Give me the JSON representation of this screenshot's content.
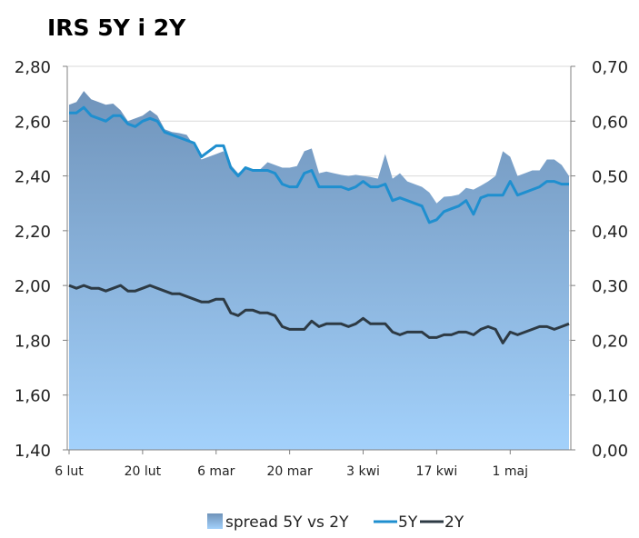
{
  "chart_data": {
    "type": "line+area",
    "title": "IRS 5Y i 2Y",
    "x_labels": [
      "6 lut",
      "20 lut",
      "6 mar",
      "20 mar",
      "3 kwi",
      "17 kwi",
      "1 maj"
    ],
    "left_axis": {
      "ylim": [
        1.4,
        2.8
      ],
      "ticks": [
        "1,40",
        "1,60",
        "1,80",
        "2,00",
        "2,20",
        "2,40",
        "2,60",
        "2,80"
      ]
    },
    "right_axis": {
      "ylim": [
        0.0,
        0.7
      ],
      "ticks": [
        "0,00",
        "0,10",
        "0,20",
        "0,30",
        "0,40",
        "0,50",
        "0,60",
        "0,70"
      ]
    },
    "grid": true,
    "legend_position": "bottom",
    "colors": {
      "spread": "#7a9cc4",
      "spread_light": "#9fcbf5",
      "s5y": "#1f8fcf",
      "s2y": "#2d3a44"
    },
    "series": [
      {
        "name": "spread 5Y vs 2Y",
        "axis": "right",
        "type": "area",
        "values": [
          0.63,
          0.635,
          0.655,
          0.64,
          0.635,
          0.63,
          0.632,
          0.62,
          0.6,
          0.605,
          0.61,
          0.62,
          0.61,
          0.585,
          0.58,
          0.578,
          0.575,
          0.555,
          0.53,
          0.535,
          0.54,
          0.545,
          0.52,
          0.505,
          0.515,
          0.51,
          0.512,
          0.525,
          0.52,
          0.515,
          0.515,
          0.518,
          0.545,
          0.55,
          0.505,
          0.508,
          0.505,
          0.502,
          0.5,
          0.502,
          0.5,
          0.498,
          0.495,
          0.54,
          0.495,
          0.505,
          0.49,
          0.485,
          0.48,
          0.47,
          0.45,
          0.462,
          0.463,
          0.466,
          0.478,
          0.475,
          0.482,
          0.49,
          0.5,
          0.545,
          0.535,
          0.5,
          0.505,
          0.51,
          0.51,
          0.53,
          0.53,
          0.52,
          0.5
        ]
      },
      {
        "name": "5Y",
        "axis": "left",
        "type": "line",
        "values": [
          2.63,
          2.63,
          2.65,
          2.62,
          2.61,
          2.6,
          2.62,
          2.62,
          2.59,
          2.58,
          2.6,
          2.61,
          2.6,
          2.56,
          2.55,
          2.54,
          2.53,
          2.52,
          2.47,
          2.49,
          2.51,
          2.51,
          2.43,
          2.4,
          2.43,
          2.42,
          2.42,
          2.42,
          2.41,
          2.37,
          2.36,
          2.36,
          2.41,
          2.42,
          2.36,
          2.36,
          2.36,
          2.36,
          2.35,
          2.36,
          2.38,
          2.36,
          2.36,
          2.37,
          2.31,
          2.32,
          2.31,
          2.3,
          2.29,
          2.23,
          2.24,
          2.27,
          2.28,
          2.29,
          2.31,
          2.26,
          2.32,
          2.33,
          2.33,
          2.33,
          2.38,
          2.33,
          2.34,
          2.35,
          2.36,
          2.38,
          2.38,
          2.37,
          2.37
        ]
      },
      {
        "name": "2Y",
        "axis": "left",
        "type": "line",
        "values": [
          2.0,
          1.99,
          2.0,
          1.99,
          1.99,
          1.98,
          1.99,
          2.0,
          1.98,
          1.98,
          1.99,
          2.0,
          1.99,
          1.98,
          1.97,
          1.97,
          1.96,
          1.95,
          1.94,
          1.94,
          1.95,
          1.95,
          1.9,
          1.89,
          1.91,
          1.91,
          1.9,
          1.9,
          1.89,
          1.85,
          1.84,
          1.84,
          1.84,
          1.87,
          1.85,
          1.86,
          1.86,
          1.86,
          1.85,
          1.86,
          1.88,
          1.86,
          1.86,
          1.86,
          1.83,
          1.82,
          1.83,
          1.83,
          1.83,
          1.81,
          1.81,
          1.82,
          1.82,
          1.83,
          1.83,
          1.82,
          1.84,
          1.85,
          1.84,
          1.79,
          1.83,
          1.82,
          1.83,
          1.84,
          1.85,
          1.85,
          1.84,
          1.85,
          1.86
        ]
      }
    ]
  }
}
